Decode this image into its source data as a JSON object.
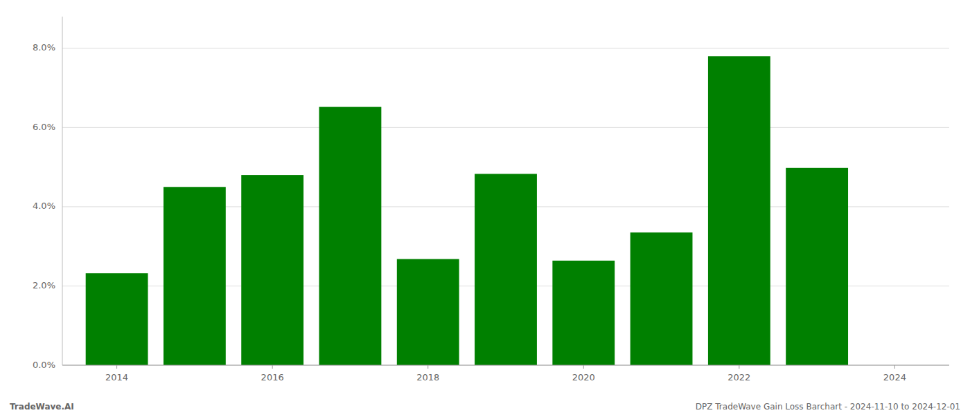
{
  "chart_data": {
    "type": "bar",
    "x": [
      2014,
      2015,
      2016,
      2017,
      2018,
      2019,
      2020,
      2021,
      2022,
      2023
    ],
    "values": [
      0.0232,
      0.045,
      0.048,
      0.0652,
      0.0268,
      0.0483,
      0.0264,
      0.0335,
      0.078,
      0.0498
    ],
    "color": "#008000",
    "xlim": [
      2013.3,
      2024.7
    ],
    "xticks": [
      2014,
      2016,
      2018,
      2020,
      2022,
      2024
    ],
    "ylim": [
      0.0,
      0.088
    ],
    "yticks": [
      {
        "value": 0.0,
        "label": "0.0%"
      },
      {
        "value": 0.02,
        "label": "2.0%"
      },
      {
        "value": 0.04,
        "label": "4.0%"
      },
      {
        "value": 0.06,
        "label": "6.0%"
      },
      {
        "value": 0.08,
        "label": "8.0%"
      }
    ],
    "grid": true,
    "annotations": [
      "TradeWave.AI",
      "DPZ TradeWave Gain Loss Barchart - 2024-11-10 to 2024-12-01"
    ]
  }
}
